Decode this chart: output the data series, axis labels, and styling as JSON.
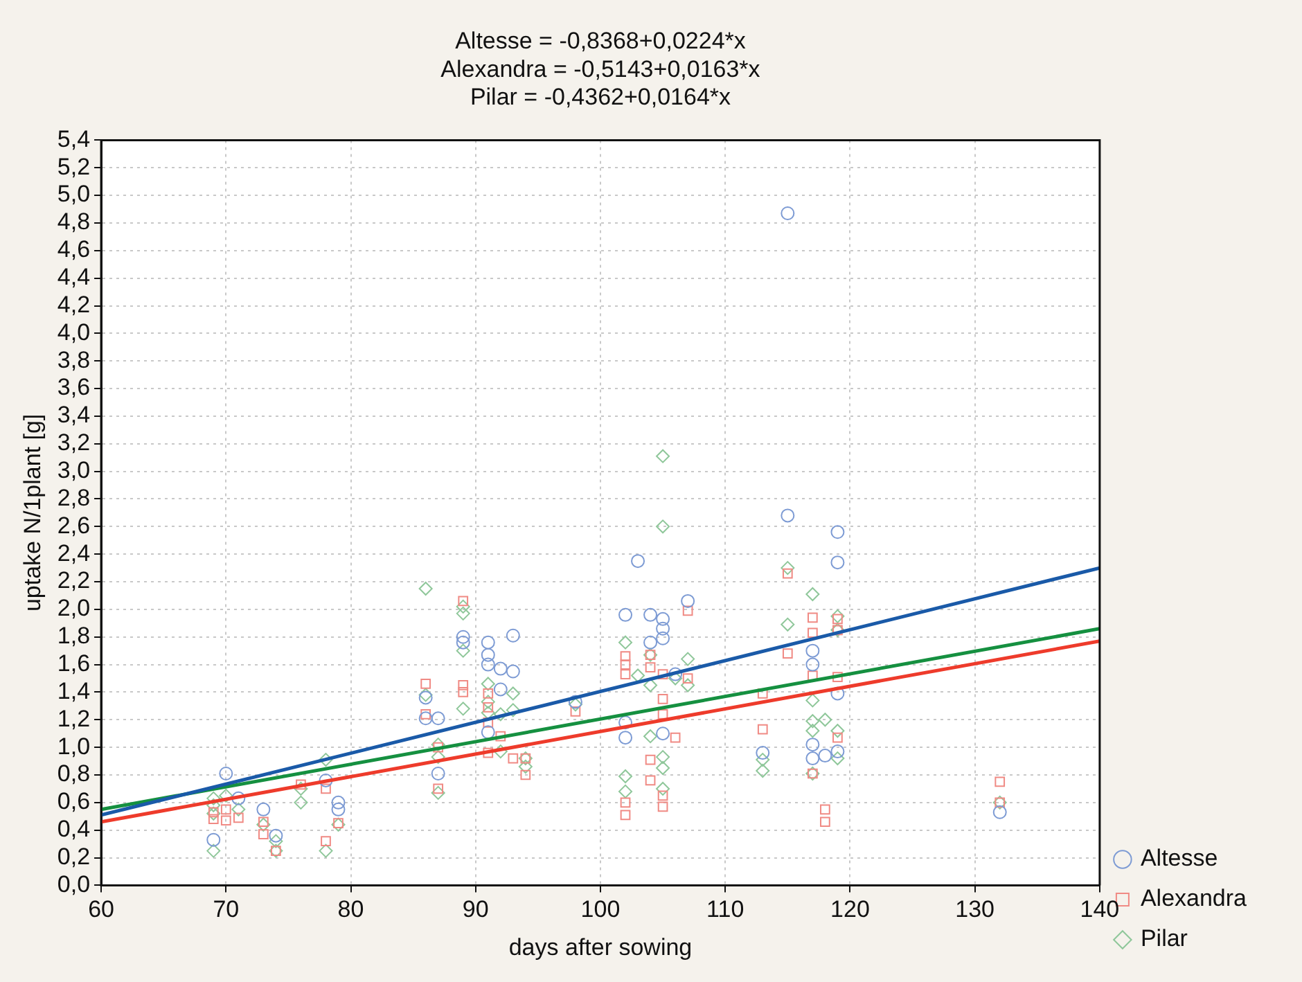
{
  "chart_data": {
    "type": "scatter",
    "annotations": [
      "Altesse = -0,8368+0,0224*x",
      "Alexandra = -0,5143+0,0163*x",
      "Pilar = -0,4362+0,0164*x"
    ],
    "xlabel": "days after sowing",
    "ylabel": "uptake N/1plant [g]",
    "xlim": [
      60,
      140
    ],
    "xticks": [
      60,
      70,
      80,
      90,
      100,
      110,
      120,
      130,
      140
    ],
    "ylim": [
      0,
      5.4
    ],
    "yticks": [
      {
        "value": 0,
        "label": "0,0"
      },
      {
        "value": 0.2,
        "label": "0,2"
      },
      {
        "value": 0.4,
        "label": "0,4"
      },
      {
        "value": 0.6,
        "label": "0,6"
      },
      {
        "value": 0.8,
        "label": "0,8"
      },
      {
        "value": 1,
        "label": "1,0"
      },
      {
        "value": 1.2,
        "label": "1,2"
      },
      {
        "value": 1.4,
        "label": "1,4"
      },
      {
        "value": 1.6,
        "label": "1,6"
      },
      {
        "value": 1.8,
        "label": "1,8"
      },
      {
        "value": 2,
        "label": "2,0"
      },
      {
        "value": 2.2,
        "label": "2,2"
      },
      {
        "value": 2.4,
        "label": "2,4"
      },
      {
        "value": 2.6,
        "label": "2,6"
      },
      {
        "value": 2.8,
        "label": "2,8"
      },
      {
        "value": 3,
        "label": "3,0"
      },
      {
        "value": 3.2,
        "label": "3,2"
      },
      {
        "value": 3.4,
        "label": "3,4"
      },
      {
        "value": 3.6,
        "label": "3,6"
      },
      {
        "value": 3.8,
        "label": "3,8"
      },
      {
        "value": 4,
        "label": "4,0"
      },
      {
        "value": 4.2,
        "label": "4,2"
      },
      {
        "value": 4.4,
        "label": "4,4"
      },
      {
        "value": 4.6,
        "label": "4,6"
      },
      {
        "value": 4.8,
        "label": "4,8"
      },
      {
        "value": 5,
        "label": "5,0"
      },
      {
        "value": 5.2,
        "label": "5,2"
      },
      {
        "value": 5.4,
        "label": "5,4"
      }
    ],
    "grid": true,
    "legend": "bottom right",
    "series": [
      {
        "type": "scatter",
        "name": "Altesse",
        "color": "#7d9bd4",
        "marker": "circle",
        "x": [
          69,
          70,
          71,
          73,
          74,
          78,
          79,
          79,
          86,
          86,
          87,
          87,
          89,
          89,
          91,
          91,
          91,
          91,
          92,
          92,
          93,
          93,
          98,
          102,
          102,
          102,
          103,
          104,
          104,
          105,
          105,
          105,
          105,
          106,
          107,
          113,
          115,
          115,
          117,
          117,
          117,
          117,
          118,
          119,
          119,
          119,
          119,
          132
        ],
        "values": [
          0.33,
          0.81,
          0.63,
          0.55,
          0.36,
          0.76,
          0.6,
          0.55,
          1.36,
          1.21,
          1.21,
          0.81,
          1.8,
          1.76,
          1.76,
          1.67,
          1.6,
          1.11,
          1.57,
          1.42,
          1.81,
          1.55,
          1.33,
          1.96,
          1.18,
          1.07,
          2.35,
          1.96,
          1.76,
          1.93,
          1.86,
          1.79,
          1.1,
          1.53,
          2.06,
          0.96,
          4.87,
          2.68,
          1.7,
          1.6,
          1.02,
          0.92,
          0.94,
          2.56,
          2.34,
          1.39,
          0.97,
          0.53
        ]
      },
      {
        "type": "scatter",
        "name": "Alexandra",
        "color": "#f08a84",
        "marker": "square",
        "x": [
          69,
          69,
          70,
          70,
          71,
          73,
          73,
          74,
          76,
          78,
          78,
          79,
          86,
          86,
          87,
          87,
          89,
          89,
          89,
          91,
          91,
          91,
          91,
          92,
          93,
          94,
          94,
          98,
          102,
          102,
          102,
          102,
          102,
          104,
          104,
          104,
          104,
          105,
          105,
          105,
          105,
          105,
          106,
          107,
          107,
          113,
          113,
          115,
          115,
          117,
          117,
          117,
          117,
          118,
          118,
          119,
          119,
          119,
          119,
          132,
          132
        ],
        "values": [
          0.53,
          0.48,
          0.55,
          0.47,
          0.49,
          0.46,
          0.37,
          0.25,
          0.73,
          0.7,
          0.32,
          0.45,
          1.46,
          1.24,
          1.0,
          0.7,
          2.06,
          1.45,
          1.4,
          1.39,
          1.29,
          1.18,
          0.96,
          1.08,
          0.92,
          0.92,
          0.8,
          1.26,
          1.66,
          1.6,
          1.53,
          0.6,
          0.51,
          1.67,
          1.58,
          0.91,
          0.76,
          1.53,
          1.35,
          1.24,
          0.65,
          0.57,
          1.07,
          1.99,
          1.5,
          1.39,
          1.13,
          2.26,
          1.68,
          1.94,
          1.83,
          1.52,
          0.81,
          0.55,
          0.46,
          1.93,
          1.85,
          1.51,
          1.07,
          0.75,
          0.6
        ]
      },
      {
        "type": "scatter",
        "name": "Pilar",
        "color": "#8fc79a",
        "marker": "diamond",
        "x": [
          69,
          69,
          69,
          69,
          70,
          71,
          73,
          74,
          74,
          76,
          76,
          78,
          78,
          79,
          86,
          86,
          87,
          87,
          87,
          89,
          89,
          89,
          89,
          91,
          91,
          91,
          92,
          92,
          93,
          93,
          94,
          94,
          98,
          102,
          102,
          102,
          103,
          104,
          104,
          104,
          105,
          105,
          105,
          105,
          105,
          106,
          107,
          107,
          113,
          113,
          115,
          115,
          117,
          117,
          117,
          117,
          117,
          118,
          119,
          119,
          119,
          119,
          132
        ],
        "values": [
          0.63,
          0.58,
          0.52,
          0.25,
          0.65,
          0.55,
          0.44,
          0.32,
          0.25,
          0.7,
          0.6,
          0.91,
          0.25,
          0.44,
          2.15,
          1.38,
          1.02,
          0.93,
          0.67,
          2.02,
          1.97,
          1.7,
          1.28,
          1.46,
          1.33,
          1.25,
          1.24,
          0.97,
          1.39,
          1.27,
          0.92,
          0.86,
          1.31,
          1.76,
          0.79,
          0.68,
          1.52,
          1.67,
          1.45,
          1.08,
          3.11,
          2.6,
          0.93,
          0.85,
          0.7,
          1.5,
          1.64,
          1.45,
          0.91,
          0.83,
          2.3,
          1.89,
          2.11,
          1.34,
          1.19,
          1.12,
          0.81,
          1.2,
          1.95,
          1.85,
          1.12,
          0.92,
          0.6
        ]
      },
      {
        "type": "line",
        "color": "#1a5aa8",
        "x": [
          60,
          140
        ],
        "values": [
          0.51,
          2.3
        ]
      },
      {
        "type": "line",
        "color": "#ee3b2b",
        "x": [
          60,
          140
        ],
        "values": [
          0.46,
          1.77
        ]
      },
      {
        "type": "line",
        "color": "#159040",
        "x": [
          60,
          140
        ],
        "values": [
          0.55,
          1.86
        ]
      }
    ]
  }
}
